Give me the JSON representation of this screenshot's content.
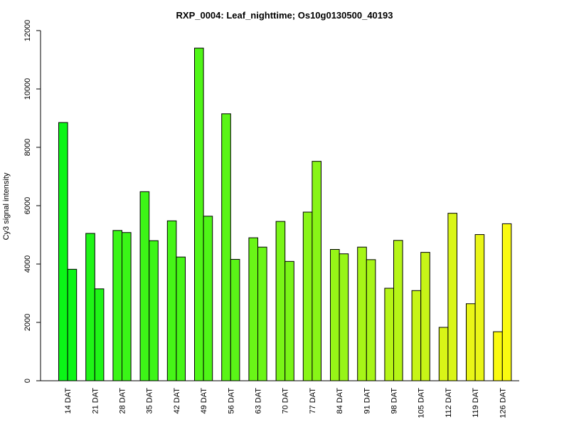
{
  "chart_data": {
    "type": "bar",
    "title": "RXP_0004: Leaf_nighttime; Os10g0130500_40193",
    "xlabel": "",
    "ylabel": "Cy3 signal intensity",
    "ylim": [
      0,
      12000
    ],
    "yticks": [
      0,
      2000,
      4000,
      6000,
      8000,
      10000,
      12000
    ],
    "grid": false,
    "legend": "none",
    "categories": [
      "14 DAT",
      "21 DAT",
      "28 DAT",
      "35 DAT",
      "42 DAT",
      "49 DAT",
      "56 DAT",
      "63 DAT",
      "70 DAT",
      "77 DAT",
      "84 DAT",
      "91 DAT",
      "98 DAT",
      "105 DAT",
      "112 DAT",
      "119 DAT",
      "126 DAT"
    ],
    "series": [
      {
        "values": [
          8850,
          5050,
          5150,
          6480,
          5480,
          11400,
          9150,
          4900,
          5460,
          5780,
          4500,
          4580,
          3170,
          3090,
          1830,
          2640,
          1680
        ]
      },
      {
        "values": [
          3820,
          3150,
          5080,
          4800,
          4240,
          5640,
          4160,
          4580,
          4090,
          7520,
          4350,
          4150,
          4810,
          4400,
          5740,
          5010,
          5380
        ]
      }
    ],
    "colors": [
      "#0bf517",
      "#1ff517",
      "#3af517",
      "#3df517",
      "#46f517",
      "#4ff517",
      "#5af517",
      "#6af517",
      "#79f517",
      "#88f517",
      "#97f517",
      "#a6f517",
      "#b6f517",
      "#c7f517",
      "#d9f517",
      "#e9f517",
      "#fafa10"
    ]
  }
}
